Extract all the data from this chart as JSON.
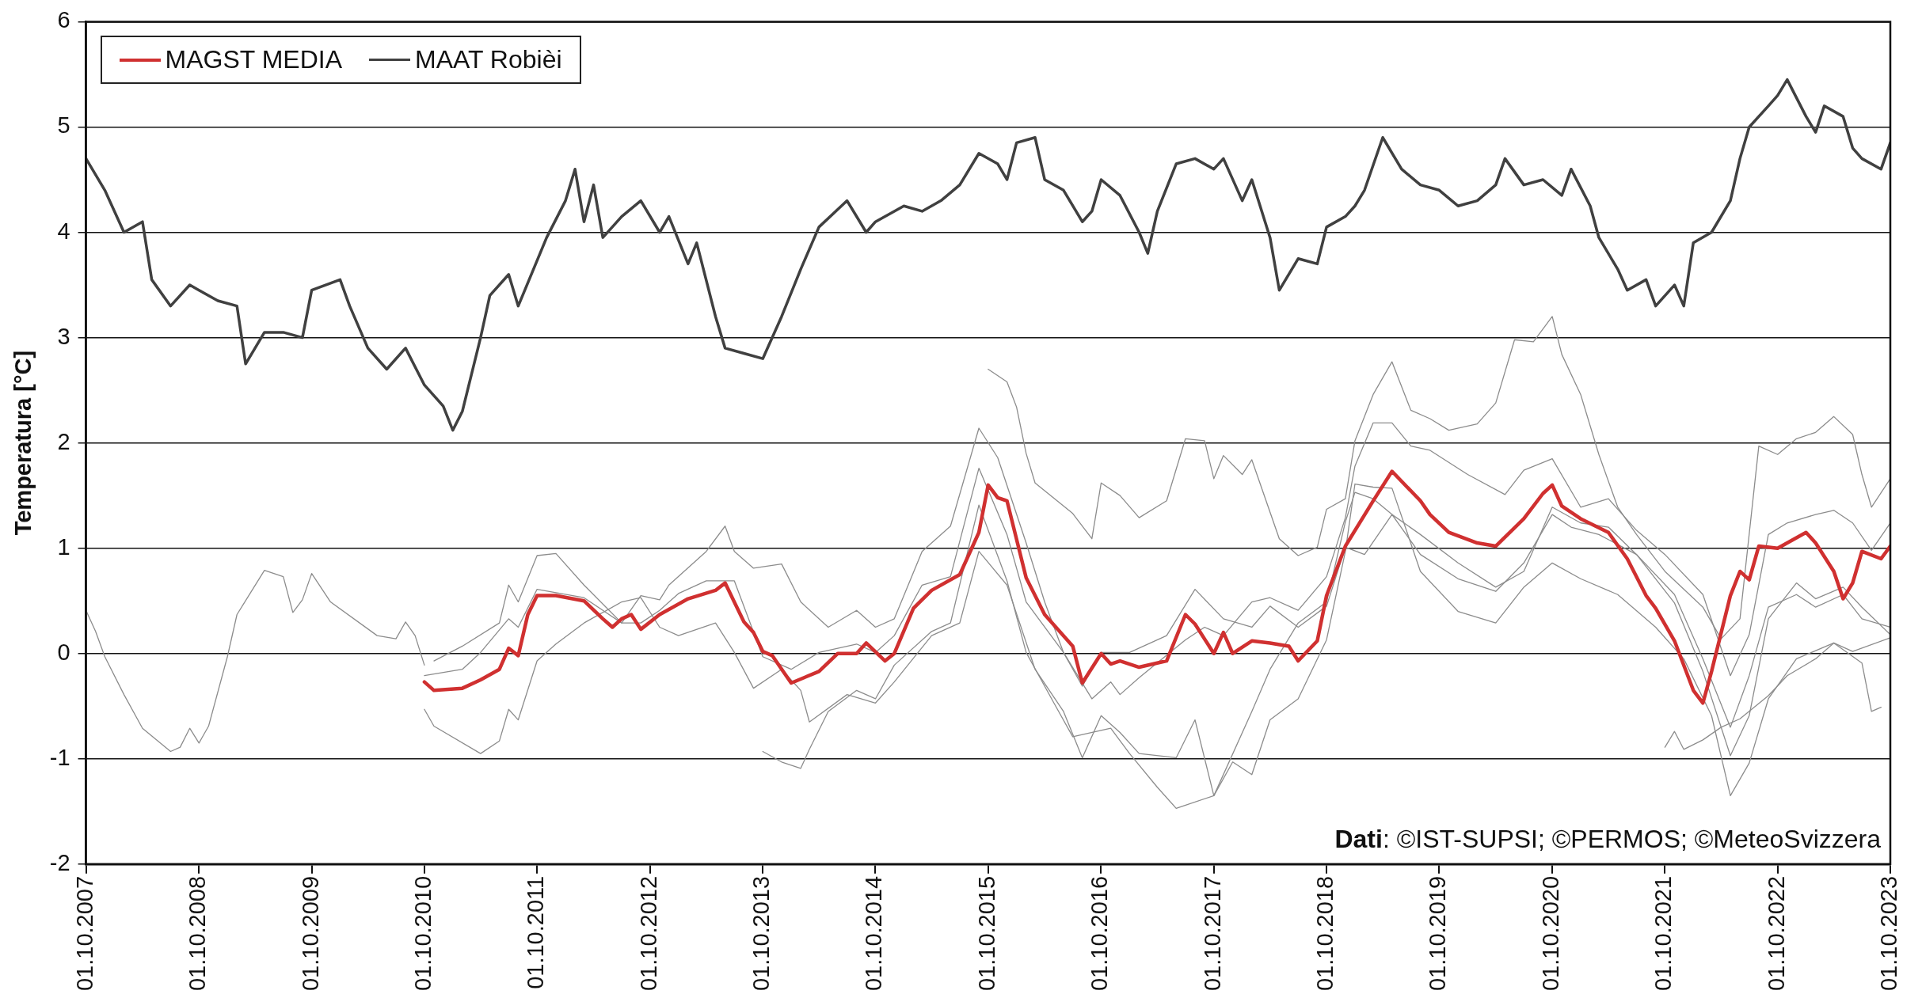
{
  "chart_data": {
    "type": "line",
    "ylabel": "Temperatura [°C]",
    "ylim": [
      -2,
      6
    ],
    "yticks": [
      -2,
      -1,
      0,
      1,
      2,
      3,
      4,
      5,
      6
    ],
    "xlim": [
      "2007-10-01",
      "2023-10-01"
    ],
    "xticks": [
      {
        "value": "2007-10-01",
        "label": "01.10.2007"
      },
      {
        "value": "2008-10-01",
        "label": "01.10.2008"
      },
      {
        "value": "2009-10-01",
        "label": "01.10.2009"
      },
      {
        "value": "2010-10-01",
        "label": "01.10.2010"
      },
      {
        "value": "2011-10-01",
        "label": "01.10.2011"
      },
      {
        "value": "2012-10-01",
        "label": "01.10.2012"
      },
      {
        "value": "2013-10-01",
        "label": "01.10.2013"
      },
      {
        "value": "2014-10-01",
        "label": "01.10.2014"
      },
      {
        "value": "2015-10-01",
        "label": "01.10.2015"
      },
      {
        "value": "2016-10-01",
        "label": "01.10.2016"
      },
      {
        "value": "2017-10-01",
        "label": "01.10.2017"
      },
      {
        "value": "2018-10-01",
        "label": "01.10.2018"
      },
      {
        "value": "2019-10-01",
        "label": "01.10.2019"
      },
      {
        "value": "2020-10-01",
        "label": "01.10.2020"
      },
      {
        "value": "2021-10-01",
        "label": "01.10.2021"
      },
      {
        "value": "2022-10-01",
        "label": "01.10.2022"
      },
      {
        "value": "2023-10-01",
        "label": "01.10.2023"
      }
    ],
    "grid": "y",
    "legend": "top left",
    "line_style": "solid",
    "marker": "none",
    "annotations": [
      "Dati: ©IST-SUPSI; ©PERMOS; ©MeteoSvizzera"
    ],
    "series": [
      {
        "name": "MAGST MEDIA",
        "color": "#d03030",
        "x": [
          "2010-10",
          "2010-11",
          "2011-02",
          "2011-04",
          "2011-06",
          "2011-07",
          "2011-08",
          "2011-09",
          "2011-10",
          "2011-12",
          "2012-03",
          "2012-05",
          "2012-06",
          "2012-07",
          "2012-08",
          "2012-09",
          "2012-11",
          "2013-02",
          "2013-05",
          "2013-06",
          "2013-08",
          "2013-09",
          "2013-10",
          "2013-11",
          "2014-01",
          "2014-04",
          "2014-06",
          "2014-08",
          "2014-09",
          "2014-11",
          "2014-12",
          "2015-02",
          "2015-04",
          "2015-07",
          "2015-09",
          "2015-10",
          "2015-11",
          "2015-12",
          "2016-02",
          "2016-04",
          "2016-07",
          "2016-08",
          "2016-10",
          "2016-11",
          "2016-12",
          "2017-02",
          "2017-05",
          "2017-07",
          "2017-08",
          "2017-10",
          "2017-11",
          "2017-12",
          "2018-02",
          "2018-04",
          "2018-06",
          "2018-07",
          "2018-09",
          "2018-10",
          "2018-12",
          "2019-03",
          "2019-05",
          "2019-08",
          "2019-09",
          "2019-11",
          "2020-02",
          "2020-04",
          "2020-07",
          "2020-09",
          "2020-10",
          "2020-11",
          "2021-01",
          "2021-04",
          "2021-06",
          "2021-08",
          "2021-09",
          "2021-11",
          "2022-01",
          "2022-02",
          "2022-03",
          "2022-05",
          "2022-06",
          "2022-07",
          "2022-08",
          "2022-10",
          "2022-11",
          "2023-01",
          "2023-02",
          "2023-04",
          "2023-05",
          "2023-06",
          "2023-07",
          "2023-09",
          "2023-10"
        ],
        "values": [
          -0.27,
          -0.35,
          -0.33,
          -0.25,
          -0.15,
          0.05,
          -0.02,
          0.37,
          0.55,
          0.55,
          0.5,
          0.33,
          0.25,
          0.33,
          0.37,
          0.23,
          0.37,
          0.52,
          0.6,
          0.67,
          0.3,
          0.2,
          0.02,
          -0.02,
          -0.28,
          -0.17,
          0,
          0,
          0.1,
          -0.07,
          0,
          0.43,
          0.6,
          0.75,
          1.15,
          1.6,
          1.48,
          1.45,
          0.72,
          0.37,
          0.07,
          -0.28,
          0,
          -0.1,
          -0.07,
          -0.13,
          -0.07,
          0.37,
          0.28,
          0,
          0.2,
          0,
          0.12,
          0.1,
          0.07,
          -0.07,
          0.12,
          0.55,
          1.02,
          1.45,
          1.73,
          1.45,
          1.32,
          1.15,
          1.05,
          1.02,
          1.28,
          1.52,
          1.6,
          1.4,
          1.28,
          1.15,
          0.9,
          0.55,
          0.43,
          0.12,
          -0.35,
          -0.47,
          -0.17,
          0.55,
          0.78,
          0.7,
          1.02,
          1,
          1.05,
          1.15,
          1.05,
          0.78,
          0.52,
          0.67,
          0.97,
          0.9,
          1.02
        ]
      },
      {
        "name": "MAAT Robièi",
        "color": "#404040",
        "x": [
          "2007-10",
          "2007-12",
          "2008-02",
          "2008-04",
          "2008-05",
          "2008-07",
          "2008-09",
          "2008-10",
          "2008-12",
          "2009-02",
          "2009-03",
          "2009-05",
          "2009-07",
          "2009-09",
          "2009-10",
          "2010-01",
          "2010-02",
          "2010-04",
          "2010-06",
          "2010-08",
          "2010-10",
          "2010-12",
          "2011-01",
          "2011-02",
          "2011-04",
          "2011-05",
          "2011-07",
          "2011-08",
          "2011-11",
          "2012-01",
          "2012-02",
          "2012-03",
          "2012-04",
          "2012-05",
          "2012-07",
          "2012-09",
          "2012-11",
          "2012-12",
          "2013-02",
          "2013-03",
          "2013-05",
          "2013-06",
          "2013-08",
          "2013-10",
          "2013-12",
          "2014-02",
          "2014-04",
          "2014-07",
          "2014-09",
          "2014-10",
          "2015-01",
          "2015-03",
          "2015-05",
          "2015-07",
          "2015-09",
          "2015-11",
          "2015-12",
          "2016-01",
          "2016-03",
          "2016-04",
          "2016-06",
          "2016-08",
          "2016-09",
          "2016-10",
          "2016-12",
          "2017-02",
          "2017-03",
          "2017-04",
          "2017-06",
          "2017-08",
          "2017-10",
          "2017-11",
          "2018-01",
          "2018-02",
          "2018-04",
          "2018-05",
          "2018-07",
          "2018-09",
          "2018-10",
          "2018-12",
          "2019-01",
          "2019-02",
          "2019-04",
          "2019-06",
          "2019-08",
          "2019-10",
          "2019-12",
          "2020-02",
          "2020-04",
          "2020-05",
          "2020-07",
          "2020-09",
          "2020-11",
          "2020-12",
          "2021-02",
          "2021-03",
          "2021-05",
          "2021-06",
          "2021-08",
          "2021-09",
          "2021-11",
          "2021-12",
          "2022-01",
          "2022-03",
          "2022-05",
          "2022-06",
          "2022-07",
          "2022-09",
          "2022-10",
          "2022-11",
          "2023-01",
          "2023-02",
          "2023-03",
          "2023-05",
          "2023-06",
          "2023-07",
          "2023-09",
          "2023-10"
        ],
        "values": [
          4.7,
          4.4,
          4.0,
          4.1,
          3.55,
          3.3,
          3.5,
          3.45,
          3.35,
          3.3,
          2.75,
          3.05,
          3.05,
          3.0,
          3.45,
          3.55,
          3.3,
          2.9,
          2.7,
          2.9,
          2.55,
          2.35,
          2.12,
          2.3,
          3.0,
          3.4,
          3.6,
          3.3,
          3.95,
          4.3,
          4.6,
          4.1,
          4.45,
          3.95,
          4.15,
          4.3,
          4.0,
          4.15,
          3.7,
          3.9,
          3.2,
          2.9,
          2.85,
          2.8,
          3.2,
          3.65,
          4.05,
          4.3,
          4.0,
          4.1,
          4.25,
          4.2,
          4.3,
          4.45,
          4.75,
          4.65,
          4.5,
          4.85,
          4.9,
          4.5,
          4.4,
          4.1,
          4.2,
          4.5,
          4.35,
          4.0,
          3.8,
          4.2,
          4.65,
          4.7,
          4.6,
          4.7,
          4.3,
          4.5,
          3.95,
          3.45,
          3.75,
          3.7,
          4.05,
          4.15,
          4.25,
          4.4,
          4.9,
          4.6,
          4.45,
          4.4,
          4.25,
          4.3,
          4.45,
          4.7,
          4.45,
          4.5,
          4.35,
          4.6,
          4.25,
          3.95,
          3.65,
          3.45,
          3.55,
          3.3,
          3.5,
          3.3,
          3.9,
          4.0,
          4.3,
          4.7,
          5.0,
          5.2,
          5.3,
          5.45,
          5.1,
          4.95,
          5.2,
          5.1,
          4.8,
          4.7,
          4.6,
          4.85
        ]
      },
      {
        "color": "#8c8c8c",
        "x": [
          "2007-10",
          "2007-11",
          "2007-12",
          "2008-02",
          "2008-04",
          "2008-07",
          "2008-08",
          "2008-09",
          "2008-10",
          "2008-11",
          "2009-01",
          "2009-02",
          "2009-05",
          "2009-07",
          "2009-08",
          "2009-09",
          "2009-10",
          "2009-12",
          "2010-05",
          "2010-07",
          "2010-08",
          "2010-09",
          "2010-10"
        ],
        "values": [
          0.41,
          0.21,
          -0.03,
          -0.39,
          -0.71,
          -0.93,
          -0.89,
          -0.71,
          -0.85,
          -0.69,
          -0.03,
          0.37,
          0.79,
          0.73,
          0.39,
          0.51,
          0.76,
          0.49,
          0.17,
          0.14,
          0.3,
          0.17,
          -0.11
        ]
      },
      {
        "color": "#8c8c8c",
        "x": [
          "2015-10",
          "2015-12",
          "2016-01",
          "2016-02",
          "2016-03",
          "2016-07",
          "2016-09",
          "2016-10",
          "2016-12",
          "2017-02",
          "2017-05",
          "2017-07",
          "2017-09",
          "2017-10",
          "2017-11",
          "2018-01",
          "2018-02",
          "2018-05",
          "2018-07",
          "2018-09",
          "2018-10",
          "2018-12",
          "2019-01",
          "2019-03",
          "2019-05",
          "2019-07",
          "2019-09",
          "2019-11",
          "2020-02",
          "2020-04",
          "2020-06",
          "2020-08",
          "2020-10",
          "2020-11",
          "2021-01",
          "2021-03",
          "2021-05",
          "2021-07",
          "2021-10",
          "2022-02",
          "2022-04",
          "2022-06",
          "2022-08",
          "2022-10",
          "2022-12",
          "2023-02",
          "2023-04",
          "2023-06",
          "2023-07",
          "2023-08",
          "2023-10"
        ],
        "values": [
          2.7,
          2.58,
          2.34,
          1.9,
          1.62,
          1.33,
          1.09,
          1.62,
          1.5,
          1.29,
          1.45,
          2.04,
          2.02,
          1.66,
          1.88,
          1.7,
          1.84,
          1.09,
          0.93,
          1.01,
          1.37,
          1.47,
          2.02,
          2.46,
          2.77,
          2.31,
          2.23,
          2.12,
          2.18,
          2.38,
          2.98,
          2.96,
          3.2,
          2.84,
          2.46,
          1.89,
          1.39,
          1.13,
          0.78,
          0.44,
          0.14,
          0.33,
          1.97,
          1.89,
          2.04,
          2.1,
          2.25,
          2.08,
          1.7,
          1.39,
          1.66
        ]
      },
      {
        "color": "#8c8c8c",
        "x": [
          "2010-11",
          "2011-02",
          "2011-06",
          "2011-07",
          "2011-08",
          "2011-10",
          "2011-12",
          "2012-03",
          "2012-07",
          "2012-09",
          "2012-11",
          "2012-12",
          "2013-04",
          "2013-06",
          "2013-07",
          "2013-09",
          "2013-12",
          "2014-02",
          "2014-05",
          "2014-08",
          "2014-10",
          "2014-12",
          "2015-03",
          "2015-06",
          "2015-09",
          "2015-11",
          "2016-02",
          "2016-04",
          "2016-06",
          "2016-09",
          "2016-11",
          "2016-12",
          "2017-02",
          "2017-07",
          "2017-09",
          "2017-11",
          "2018-02",
          "2018-04",
          "2018-07",
          "2018-10",
          "2018-12",
          "2019-01",
          "2019-03",
          "2019-05",
          "2019-07",
          "2019-09",
          "2020-01",
          "2020-05",
          "2020-07",
          "2020-10",
          "2021-01",
          "2021-04",
          "2021-07",
          "2021-10",
          "2022-02",
          "2022-05",
          "2022-07",
          "2022-09",
          "2022-11",
          "2023-02",
          "2023-04",
          "2023-06",
          "2023-08",
          "2023-10"
        ],
        "values": [
          -0.07,
          0.07,
          0.29,
          0.65,
          0.49,
          0.93,
          0.95,
          0.65,
          0.29,
          0.55,
          0.51,
          0.65,
          0.97,
          1.21,
          0.97,
          0.81,
          0.85,
          0.49,
          0.25,
          0.41,
          0.25,
          0.33,
          0.97,
          1.21,
          2.14,
          1.86,
          1.05,
          0.49,
          0.01,
          -0.43,
          -0.27,
          -0.39,
          -0.23,
          0.13,
          0.25,
          0.17,
          0.49,
          0.53,
          0.41,
          0.73,
          1.29,
          1.78,
          2.19,
          2.19,
          1.97,
          1.93,
          1.7,
          1.51,
          1.74,
          1.85,
          1.39,
          1.47,
          1.17,
          0.94,
          0.56,
          -0.21,
          0.18,
          1.13,
          1.24,
          1.32,
          1.36,
          1.24,
          0.98,
          1.24
        ]
      },
      {
        "color": "#8c8c8c",
        "x": [
          "2010-10",
          "2010-11",
          "2011-04",
          "2011-06",
          "2011-07",
          "2011-08",
          "2011-10",
          "2011-12",
          "2012-03",
          "2012-07",
          "2012-09",
          "2012-11",
          "2013-01",
          "2013-05",
          "2013-07",
          "2013-09",
          "2013-12",
          "2014-02",
          "2014-03",
          "2014-07",
          "2014-10",
          "2014-12",
          "2015-04",
          "2015-07",
          "2015-09",
          "2015-12",
          "2016-03",
          "2016-06",
          "2016-08",
          "2016-10",
          "2016-12",
          "2017-02",
          "2017-06",
          "2017-08",
          "2017-10",
          "2017-12",
          "2018-02",
          "2018-04",
          "2018-07",
          "2018-10",
          "2018-12",
          "2019-01",
          "2019-03",
          "2019-05",
          "2019-08",
          "2019-12",
          "2020-04",
          "2020-07",
          "2020-10",
          "2021-01",
          "2021-05",
          "2021-09",
          "2021-12",
          "2022-03",
          "2022-05",
          "2022-07",
          "2022-09",
          "2022-12",
          "2023-04",
          "2023-07",
          "2023-08",
          "2023-09"
        ],
        "values": [
          -0.53,
          -0.69,
          -0.95,
          -0.83,
          -0.53,
          -0.63,
          -0.07,
          0.09,
          0.29,
          0.49,
          0.53,
          0.25,
          0.17,
          0.29,
          0.01,
          -0.33,
          -0.15,
          -0.35,
          -0.65,
          -0.39,
          -0.47,
          -0.27,
          0.17,
          0.29,
          0.97,
          0.65,
          -0.15,
          -0.55,
          -0.99,
          -0.59,
          -0.75,
          -0.95,
          -0.99,
          -0.63,
          -1.35,
          -1.03,
          -1.15,
          -0.63,
          -0.43,
          0.13,
          0.97,
          1.61,
          1.58,
          1.57,
          0.78,
          0.4,
          0.29,
          0.63,
          0.86,
          0.71,
          0.56,
          0.25,
          -0.05,
          -0.59,
          -1.35,
          -1.04,
          -0.43,
          -0.05,
          0.1,
          -0.09,
          -0.55,
          -0.51
        ]
      },
      {
        "color": "#8c8c8c",
        "x": [
          "2013-10",
          "2013-12",
          "2014-02",
          "2014-03",
          "2014-05",
          "2014-08",
          "2014-10",
          "2014-12",
          "2015-04",
          "2015-06",
          "2015-09",
          "2015-12",
          "2016-02",
          "2016-05",
          "2016-07",
          "2016-11",
          "2017-01",
          "2017-04",
          "2017-06",
          "2017-10",
          "2018-02",
          "2018-04",
          "2018-07",
          "2018-10",
          "2018-12",
          "2019-01",
          "2019-03",
          "2019-05",
          "2019-08",
          "2019-12",
          "2020-04",
          "2020-07",
          "2020-10",
          "2020-12",
          "2021-03",
          "2021-07",
          "2021-11",
          "2022-02",
          "2022-05",
          "2022-07",
          "2022-09",
          "2022-12",
          "2023-02",
          "2023-05",
          "2023-07",
          "2023-10"
        ],
        "values": [
          -0.93,
          -1.03,
          -1.09,
          -0.91,
          -0.55,
          -0.35,
          -0.43,
          -0.11,
          0.21,
          0.29,
          1.41,
          0.69,
          0.01,
          -0.47,
          -0.79,
          -0.71,
          -0.95,
          -1.27,
          -1.47,
          -1.35,
          -0.55,
          -0.15,
          0.29,
          0.49,
          1.25,
          1.53,
          1.47,
          1.32,
          0.94,
          0.71,
          0.59,
          0.86,
          1.32,
          1.2,
          1.13,
          0.94,
          0.56,
          -0.05,
          -0.7,
          -0.21,
          0.44,
          0.56,
          0.44,
          0.56,
          0.33,
          0.25
        ]
      },
      {
        "color": "#8c8c8c",
        "x": [
          "2021-10",
          "2021-11",
          "2021-12",
          "2022-02",
          "2022-04",
          "2022-06",
          "2022-09",
          "2022-11",
          "2023-02",
          "2023-04",
          "2023-06",
          "2023-10"
        ],
        "values": [
          -0.89,
          -0.74,
          -0.91,
          -0.82,
          -0.7,
          -0.62,
          -0.4,
          -0.21,
          -0.05,
          0.1,
          0.02,
          0.15
        ]
      },
      {
        "color": "#8c8c8c",
        "x": [
          "2010-10",
          "2011-02",
          "2011-04",
          "2011-07",
          "2011-08",
          "2011-10",
          "2012-03",
          "2012-07",
          "2012-09",
          "2012-11",
          "2013-01",
          "2013-04",
          "2013-07",
          "2013-10",
          "2014-01",
          "2014-04",
          "2014-08",
          "2014-10",
          "2014-12",
          "2015-03",
          "2015-06",
          "2015-09",
          "2015-12",
          "2016-02",
          "2016-06",
          "2016-08",
          "2016-10",
          "2017-01",
          "2017-05",
          "2017-08",
          "2017-11",
          "2018-02",
          "2018-04",
          "2018-07",
          "2018-10",
          "2018-12",
          "2019-02",
          "2019-05",
          "2019-08",
          "2019-12",
          "2020-04",
          "2020-07",
          "2020-10",
          "2021-01",
          "2021-04",
          "2021-07",
          "2021-11",
          "2022-02",
          "2022-05",
          "2022-07",
          "2022-09",
          "2022-12",
          "2023-02",
          "2023-05",
          "2023-07",
          "2023-10"
        ],
        "values": [
          -0.21,
          -0.15,
          0.01,
          0.33,
          0.25,
          0.61,
          0.53,
          0.29,
          0.29,
          0.41,
          0.57,
          0.69,
          0.69,
          -0.03,
          -0.15,
          0.01,
          0.09,
          0.01,
          0.17,
          0.65,
          0.73,
          1.76,
          1.13,
          0.49,
          0.01,
          -0.31,
          0.01,
          0.01,
          0.17,
          0.61,
          0.33,
          0.25,
          0.45,
          0.25,
          0.45,
          1.01,
          0.94,
          1.32,
          1.13,
          0.86,
          0.63,
          0.78,
          1.39,
          1.24,
          1.2,
          0.94,
          0.48,
          -0.17,
          -0.97,
          -0.59,
          0.33,
          0.67,
          0.52,
          0.63,
          0.44,
          0.18
        ]
      }
    ]
  }
}
